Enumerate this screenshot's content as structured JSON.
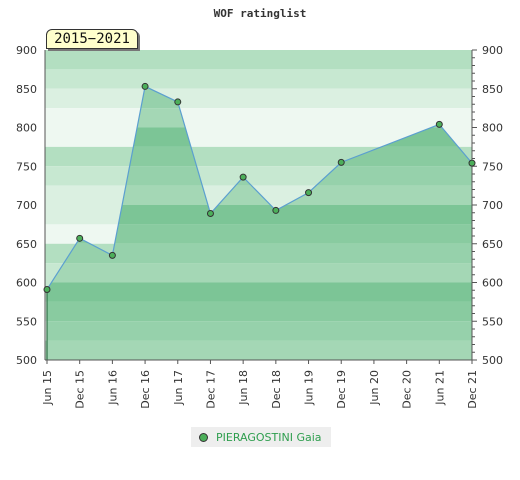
{
  "chart_data": {
    "type": "area",
    "title": "WOF ratinglist",
    "period_label": "2015−2021",
    "x_ticks": [
      "Jun 15",
      "Dec 15",
      "Jun 16",
      "Dec 16",
      "Jun 17",
      "Dec 17",
      "Jun 18",
      "Dec 18",
      "Jun 19",
      "Dec 19",
      "Jun 20",
      "Dec 20",
      "Jun 21",
      "Dec 21"
    ],
    "y_ticks": [
      "500",
      "550",
      "600",
      "650",
      "700",
      "750",
      "800",
      "850",
      "900"
    ],
    "ylim": [
      500,
      900
    ],
    "series": [
      {
        "name": "PIERAGOSTINI Gaia",
        "color": "#4caf5a",
        "points": [
          {
            "x": 0,
            "y": 591
          },
          {
            "x": 1,
            "y": 657
          },
          {
            "x": 2,
            "y": 635
          },
          {
            "x": 3,
            "y": 853
          },
          {
            "x": 4,
            "y": 833
          },
          {
            "x": 5,
            "y": 689
          },
          {
            "x": 6,
            "y": 736
          },
          {
            "x": 7,
            "y": 693
          },
          {
            "x": 8,
            "y": 716
          },
          {
            "x": 9,
            "y": 755
          },
          {
            "x": 12,
            "y": 804
          },
          {
            "x": 13,
            "y": 754
          }
        ]
      }
    ],
    "grid": true,
    "legend_position": "bottom"
  }
}
